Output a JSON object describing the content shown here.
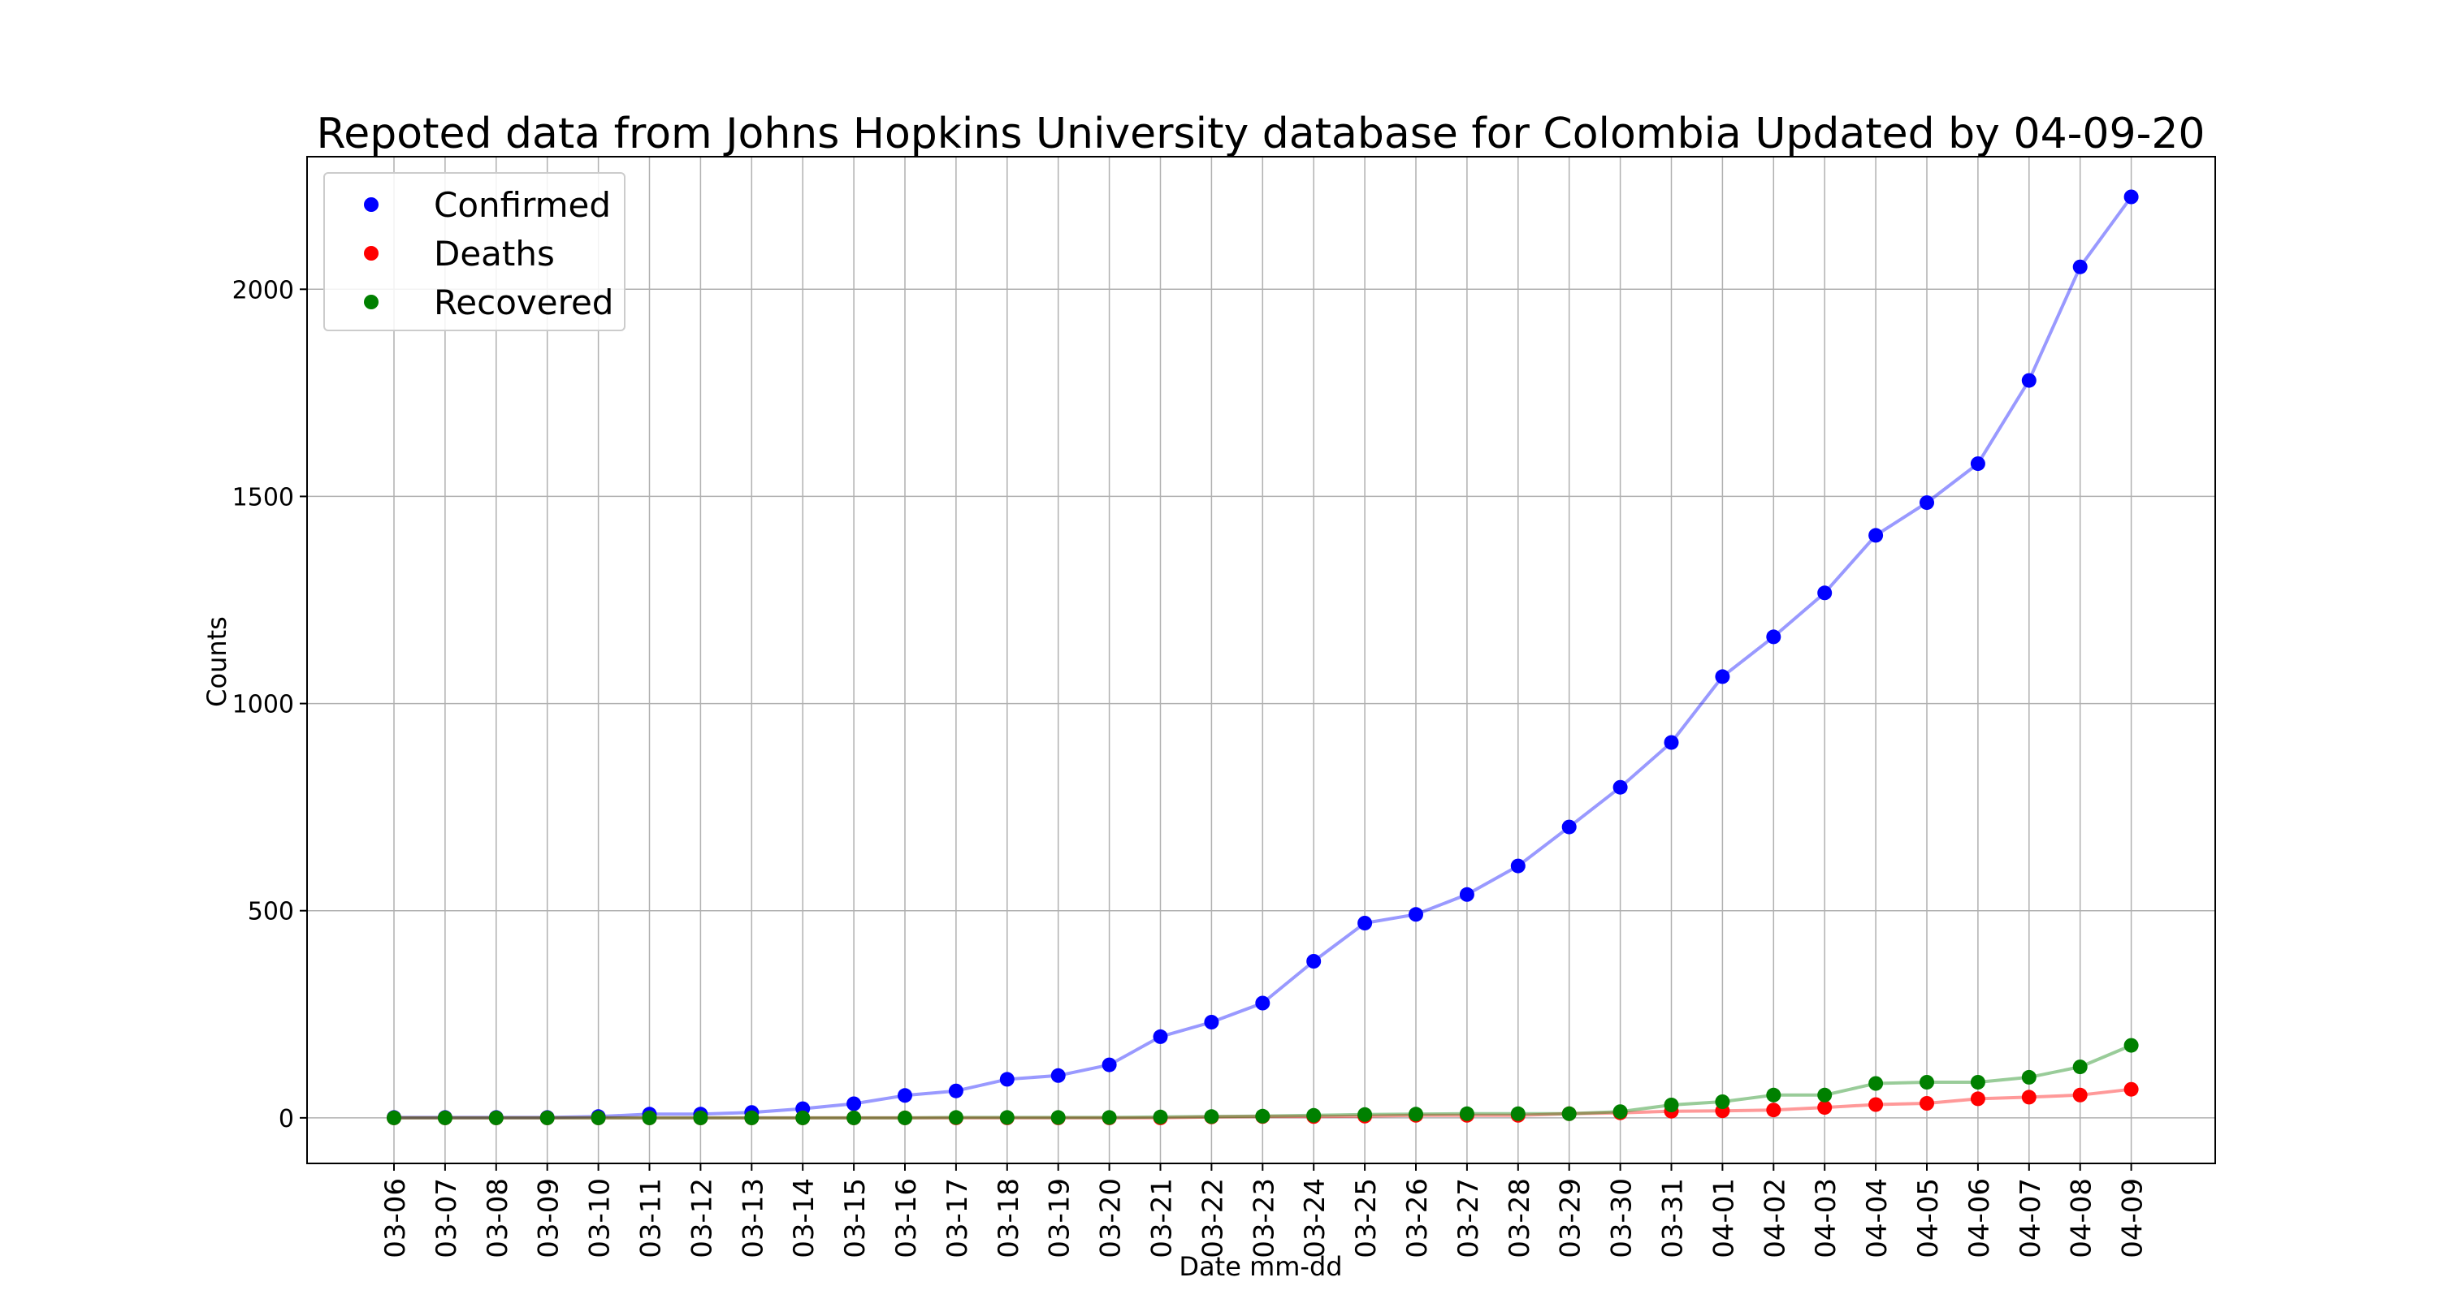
{
  "chart_data": {
    "type": "line",
    "title": "Repoted data from Johns Hopkins University database for Colombia Updated by 04-09-20",
    "xlabel": "Date mm-dd",
    "ylabel": "Counts",
    "categories": [
      "03-06",
      "03-07",
      "03-08",
      "03-09",
      "03-10",
      "03-11",
      "03-12",
      "03-13",
      "03-14",
      "03-15",
      "03-16",
      "03-17",
      "03-18",
      "03-19",
      "03-20",
      "03-21",
      "03-22",
      "03-23",
      "03-24",
      "03-25",
      "03-26",
      "03-27",
      "03-28",
      "03-29",
      "03-30",
      "03-31",
      "04-01",
      "04-02",
      "04-03",
      "04-04",
      "04-05",
      "04-06",
      "04-07",
      "04-08",
      "04-09"
    ],
    "ylim": [
      -110,
      2320
    ],
    "yticks": [
      0,
      500,
      1000,
      1500,
      2000
    ],
    "grid": true,
    "legend_position": "top-left",
    "series": [
      {
        "name": "Confirmed",
        "color": "#0000ff",
        "values": [
          1,
          1,
          1,
          1,
          3,
          9,
          9,
          13,
          22,
          34,
          54,
          65,
          93,
          102,
          128,
          196,
          231,
          277,
          378,
          470,
          491,
          539,
          608,
          702,
          798,
          906,
          1065,
          1161,
          1267,
          1406,
          1485,
          1579,
          1780,
          2054,
          2223
        ]
      },
      {
        "name": "Deaths",
        "color": "#ff0000",
        "values": [
          0,
          0,
          0,
          0,
          0,
          0,
          0,
          0,
          0,
          0,
          0,
          0,
          0,
          0,
          0,
          0,
          2,
          3,
          3,
          4,
          6,
          6,
          6,
          10,
          12,
          16,
          17,
          19,
          25,
          32,
          35,
          46,
          50,
          55,
          69
        ]
      },
      {
        "name": "Recovered",
        "color": "#008000",
        "values": [
          0,
          0,
          0,
          0,
          0,
          0,
          0,
          0,
          0,
          0,
          0,
          1,
          1,
          1,
          1,
          2,
          3,
          4,
          6,
          8,
          9,
          10,
          10,
          10,
          15,
          31,
          39,
          55,
          55,
          83,
          86,
          86,
          98,
          123,
          175
        ]
      }
    ]
  }
}
